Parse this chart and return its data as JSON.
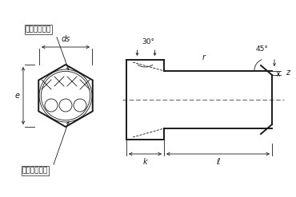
{
  "bg_color": "#ffffff",
  "line_color": "#1a1a1a",
  "lw_thick": 1.4,
  "lw_med": 0.9,
  "lw_thin": 0.6,
  "fig_w": 3.7,
  "fig_h": 2.47,
  "label_e": "e",
  "label_ds": "ds",
  "label_k": "k",
  "label_l": "ℓ",
  "label_z": "z",
  "label_r": "r",
  "label_30": "30°",
  "label_45": "45°",
  "label_maker": "メーカー表示",
  "label_strength": "強度区分表示"
}
